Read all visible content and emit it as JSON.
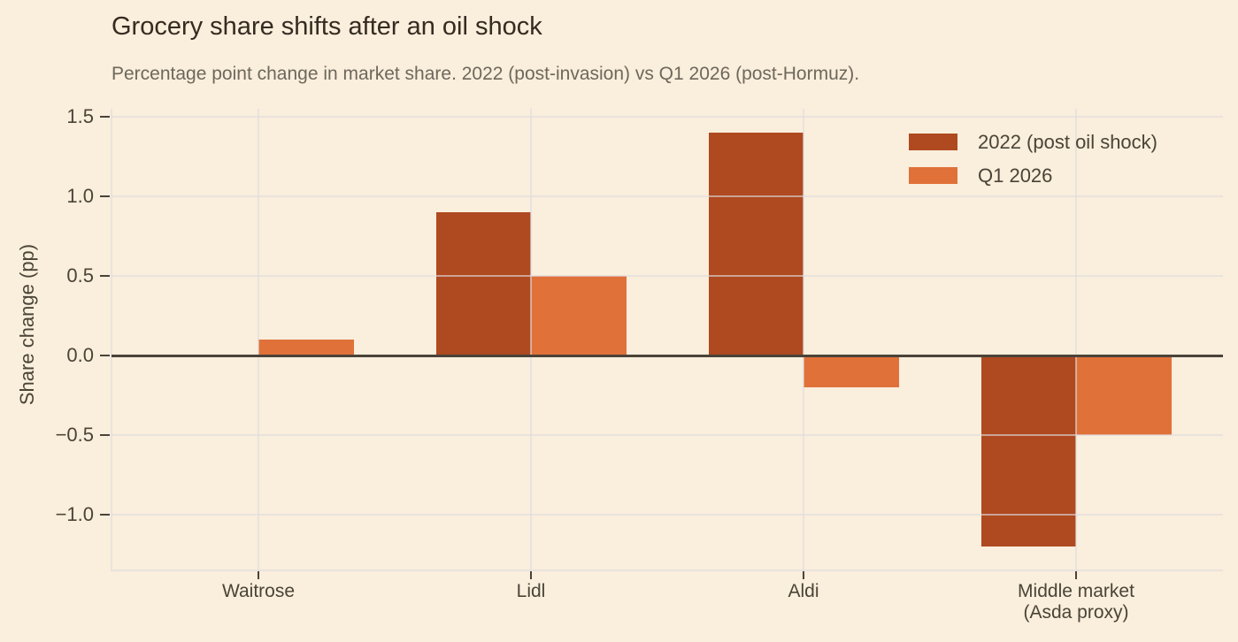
{
  "colors": {
    "background": "#FAEEDC",
    "bar_2022": "#AF4920",
    "bar_q1_2026": "#E07139",
    "grid_line": "#DEDBDE",
    "axis_line": "#4A4339",
    "title_text": "#352B21",
    "subtitle_text": "#6E685C",
    "axis_text": "#4A4437"
  },
  "chart_data": {
    "type": "bar",
    "title": "Grocery share shifts after an oil shock",
    "subtitle": "Percentage point change in market share. 2022 (post-invasion) vs Q1 2026 (post-Hormuz).",
    "categories": [
      "Waitrose",
      "Lidl",
      "Aldi",
      "Middle market\n(Asda proxy)"
    ],
    "series": [
      {
        "name": "2022 (post oil shock)",
        "color": "#AF4920",
        "values": [
          0.0,
          0.9,
          1.4,
          -1.2
        ]
      },
      {
        "name": "Q1 2026",
        "color": "#E07139",
        "values": [
          0.1,
          0.5,
          -0.2,
          -0.5
        ]
      }
    ],
    "xlabel": "",
    "ylabel": "Share change (pp)",
    "ylim": [
      -1.35,
      1.55
    ],
    "yticks": [
      1.5,
      1.0,
      0.5,
      0.0,
      -0.5,
      -1.0
    ],
    "ytick_labels": [
      "1.5",
      "1.0",
      "0.5",
      "0.0",
      "−0.5",
      "−1.0"
    ],
    "grid": true,
    "zero_line": true,
    "legend_position": "top-right"
  }
}
